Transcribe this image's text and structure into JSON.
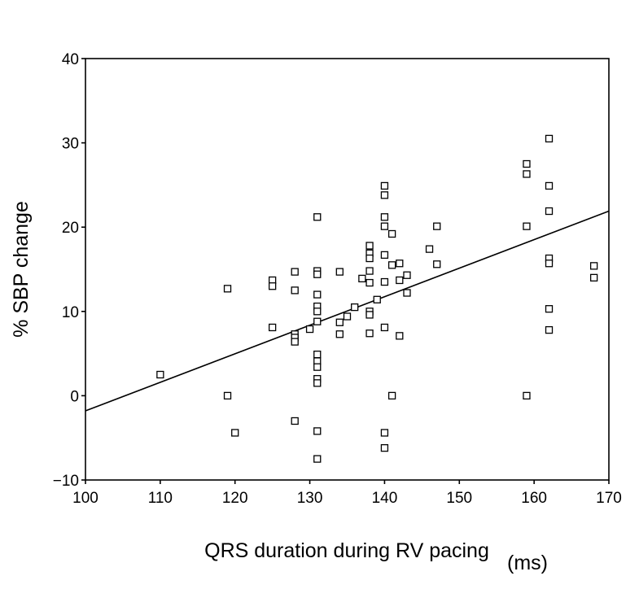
{
  "chart_data": {
    "type": "scatter",
    "xlabel": "QRS duration during RV pacing",
    "xunit": "(ms)",
    "ylabel": "% SBP change",
    "xlim": [
      100,
      170
    ],
    "ylim": [
      -10,
      40
    ],
    "xticks": [
      100,
      110,
      120,
      130,
      140,
      150,
      160,
      170
    ],
    "yticks": [
      -10,
      0,
      10,
      20,
      30,
      40
    ],
    "xtick_labels": [
      "100",
      "110",
      "120",
      "130",
      "140",
      "150",
      "160",
      "170"
    ],
    "ytick_labels": [
      "−10",
      "0",
      "10",
      "20",
      "30",
      "40"
    ],
    "grid": false,
    "legend": "none",
    "marker": "open-square",
    "points": [
      [
        110,
        2.5
      ],
      [
        119,
        12.7
      ],
      [
        119,
        0
      ],
      [
        120,
        -4.4
      ],
      [
        125,
        13.7
      ],
      [
        125,
        13.0
      ],
      [
        125,
        8.1
      ],
      [
        128,
        14.7
      ],
      [
        128,
        12.5
      ],
      [
        128,
        7.3
      ],
      [
        128,
        6.9
      ],
      [
        128,
        6.4
      ],
      [
        128,
        -3.0
      ],
      [
        130,
        7.9
      ],
      [
        131,
        21.2
      ],
      [
        131,
        14.8
      ],
      [
        131,
        14.4
      ],
      [
        131,
        12.0
      ],
      [
        131,
        10.6
      ],
      [
        131,
        10.0
      ],
      [
        131,
        8.8
      ],
      [
        131,
        4.9
      ],
      [
        131,
        4.1
      ],
      [
        131,
        3.4
      ],
      [
        131,
        2.0
      ],
      [
        131,
        1.5
      ],
      [
        131,
        -4.2
      ],
      [
        131,
        -7.5
      ],
      [
        134,
        14.7
      ],
      [
        134,
        8.7
      ],
      [
        134,
        7.3
      ],
      [
        135,
        9.4
      ],
      [
        136,
        10.5
      ],
      [
        137,
        13.9
      ],
      [
        138,
        17.8
      ],
      [
        138,
        16.9
      ],
      [
        138,
        16.3
      ],
      [
        138,
        14.8
      ],
      [
        138,
        13.4
      ],
      [
        138,
        10.0
      ],
      [
        138,
        9.6
      ],
      [
        138,
        7.4
      ],
      [
        139,
        11.4
      ],
      [
        140,
        24.9
      ],
      [
        140,
        23.8
      ],
      [
        140,
        21.2
      ],
      [
        140,
        20.1
      ],
      [
        140,
        16.7
      ],
      [
        140,
        13.5
      ],
      [
        140,
        8.1
      ],
      [
        140,
        -4.4
      ],
      [
        140,
        -6.2
      ],
      [
        141,
        19.2
      ],
      [
        141,
        15.5
      ],
      [
        141,
        0
      ],
      [
        142,
        15.7
      ],
      [
        142,
        13.7
      ],
      [
        142,
        7.1
      ],
      [
        143,
        14.3
      ],
      [
        143,
        12.2
      ],
      [
        146,
        17.4
      ],
      [
        147,
        20.1
      ],
      [
        147,
        15.6
      ],
      [
        159,
        27.5
      ],
      [
        159,
        26.3
      ],
      [
        159,
        20.1
      ],
      [
        159,
        0
      ],
      [
        162,
        30.5
      ],
      [
        162,
        24.9
      ],
      [
        162,
        21.9
      ],
      [
        162,
        16.3
      ],
      [
        162,
        15.7
      ],
      [
        162,
        10.3
      ],
      [
        162,
        7.8
      ],
      [
        168,
        15.4
      ],
      [
        168,
        14.0
      ]
    ],
    "regression_line": {
      "x": [
        100,
        170
      ],
      "y": [
        -1.8,
        21.9
      ]
    }
  }
}
